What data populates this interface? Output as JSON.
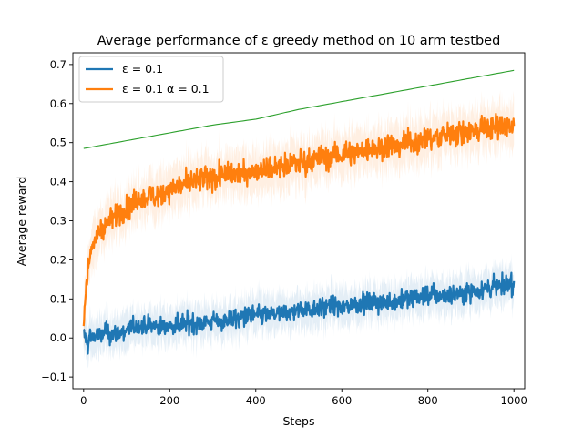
{
  "chart_data": {
    "type": "line",
    "title": "Average performance of ε greedy method on 10 arm testbed",
    "xlabel": "Steps",
    "ylabel": "Average reward",
    "xlim": [
      -25,
      1025
    ],
    "ylim": [
      -0.13,
      0.73
    ],
    "x_ticks": [
      0,
      200,
      400,
      600,
      800,
      1000
    ],
    "y_ticks": [
      -0.1,
      0.0,
      0.1,
      0.2,
      0.3,
      0.4,
      0.5,
      0.6,
      0.7
    ],
    "grid": false,
    "legend_position": "top-left",
    "series": [
      {
        "name": "ε = 0.1",
        "color": "#1f77b4",
        "x": [
          0,
          5,
          10,
          15,
          20,
          30,
          40,
          50,
          60,
          80,
          100,
          120,
          150,
          180,
          200,
          250,
          300,
          350,
          400,
          450,
          500,
          550,
          600,
          650,
          700,
          750,
          800,
          850,
          900,
          950,
          1000
        ],
        "y": [
          0.01,
          0.0,
          -0.02,
          0.01,
          0.0,
          0.01,
          0.0,
          0.02,
          0.01,
          0.01,
          0.02,
          0.03,
          0.03,
          0.03,
          0.03,
          0.04,
          0.04,
          0.05,
          0.06,
          0.06,
          0.07,
          0.08,
          0.08,
          0.09,
          0.09,
          0.1,
          0.11,
          0.11,
          0.12,
          0.13,
          0.14
        ]
      },
      {
        "name": "ε = 0.1 α = 0.1",
        "color": "#ff7f0e",
        "x": [
          0,
          5,
          10,
          15,
          20,
          30,
          40,
          50,
          60,
          80,
          100,
          120,
          150,
          180,
          200,
          250,
          300,
          350,
          400,
          450,
          500,
          550,
          600,
          650,
          700,
          750,
          800,
          850,
          900,
          950,
          1000
        ],
        "y": [
          0.03,
          0.12,
          0.18,
          0.21,
          0.23,
          0.26,
          0.28,
          0.29,
          0.3,
          0.32,
          0.33,
          0.35,
          0.36,
          0.37,
          0.38,
          0.4,
          0.41,
          0.42,
          0.43,
          0.44,
          0.45,
          0.46,
          0.47,
          0.48,
          0.49,
          0.5,
          0.51,
          0.52,
          0.53,
          0.54,
          0.54
        ]
      },
      {
        "color": "#2ca02c",
        "x": [
          0,
          100,
          200,
          300,
          400,
          500,
          600,
          700,
          800,
          900,
          1000
        ],
        "y": [
          0.485,
          0.505,
          0.525,
          0.545,
          0.56,
          0.585,
          0.605,
          0.625,
          0.645,
          0.665,
          0.685
        ]
      }
    ]
  }
}
